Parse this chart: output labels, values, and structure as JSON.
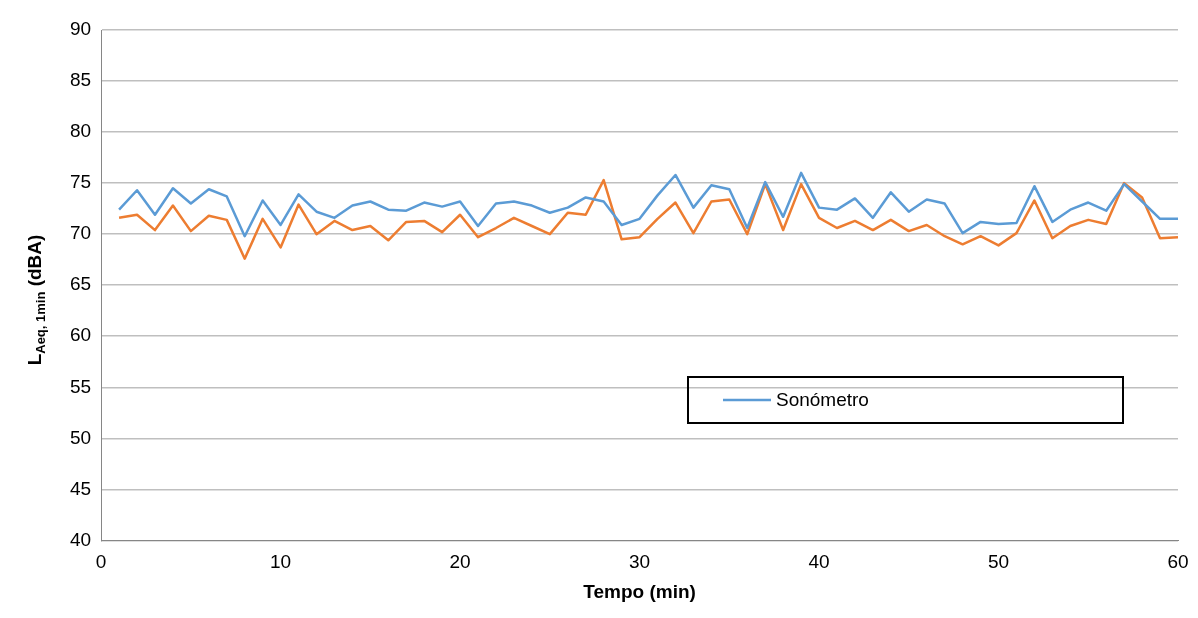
{
  "chart_data": {
    "type": "line",
    "xlabel": "Tempo (min)",
    "ylabel": "L$_{Aeq, 1min}$ (dBA)",
    "x": [
      1,
      2,
      3,
      4,
      5,
      6,
      7,
      8,
      9,
      10,
      11,
      12,
      13,
      14,
      15,
      16,
      17,
      18,
      19,
      20,
      21,
      22,
      23,
      24,
      25,
      26,
      27,
      28,
      29,
      30,
      31,
      32,
      33,
      34,
      35,
      36,
      37,
      38,
      39,
      40,
      41,
      42,
      43,
      44,
      45,
      46,
      47,
      48,
      49,
      50,
      51,
      52,
      53,
      54,
      55,
      56,
      57,
      58,
      59,
      60
    ],
    "series": [
      {
        "name": "Sonómetro",
        "color": "#5b9bd5",
        "values": [
          72.4,
          74.3,
          71.9,
          74.5,
          73.0,
          74.4,
          73.7,
          69.8,
          73.3,
          70.9,
          73.9,
          72.2,
          71.6,
          72.8,
          73.2,
          72.4,
          72.3,
          73.1,
          72.7,
          73.2,
          70.8,
          73.0,
          73.2,
          72.8,
          72.1,
          72.6,
          73.6,
          73.2,
          70.9,
          71.5,
          73.8,
          75.8,
          72.6,
          74.8,
          74.4,
          70.6,
          75.1,
          71.7,
          76.0,
          72.6,
          72.4,
          73.5,
          71.6,
          74.1,
          72.2,
          73.4,
          73.0,
          70.1,
          71.2,
          71.0,
          71.1,
          74.7,
          71.2,
          72.4,
          73.1,
          72.3,
          74.9,
          73.2,
          71.5,
          71.5
        ]
      },
      {
        "color": "#ed7d31",
        "values": [
          71.6,
          71.9,
          70.4,
          72.8,
          70.3,
          71.8,
          71.4,
          67.6,
          71.5,
          68.7,
          72.9,
          70.0,
          71.3,
          70.4,
          70.8,
          69.4,
          71.2,
          71.3,
          70.2,
          71.9,
          69.7,
          70.6,
          71.6,
          70.8,
          70.0,
          72.1,
          71.9,
          75.3,
          69.5,
          69.7,
          71.5,
          73.1,
          70.1,
          73.2,
          73.4,
          70.0,
          74.9,
          70.4,
          74.9,
          71.6,
          70.6,
          71.3,
          70.4,
          71.4,
          70.3,
          70.9,
          69.8,
          69.0,
          69.8,
          68.9,
          70.1,
          73.3,
          69.6,
          70.8,
          71.4,
          71.0,
          75.0,
          73.6,
          69.6,
          69.7
        ]
      }
    ],
    "xlim": [
      0,
      60
    ],
    "xticks": [
      0,
      10,
      20,
      30,
      40,
      50,
      60
    ],
    "ylim": [
      40,
      90
    ],
    "yticks": [
      40,
      45,
      50,
      55,
      60,
      65,
      70,
      75,
      80,
      85,
      90
    ],
    "grid": "y",
    "legend": "bottom right",
    "marker": "none",
    "line_style": "solid"
  }
}
